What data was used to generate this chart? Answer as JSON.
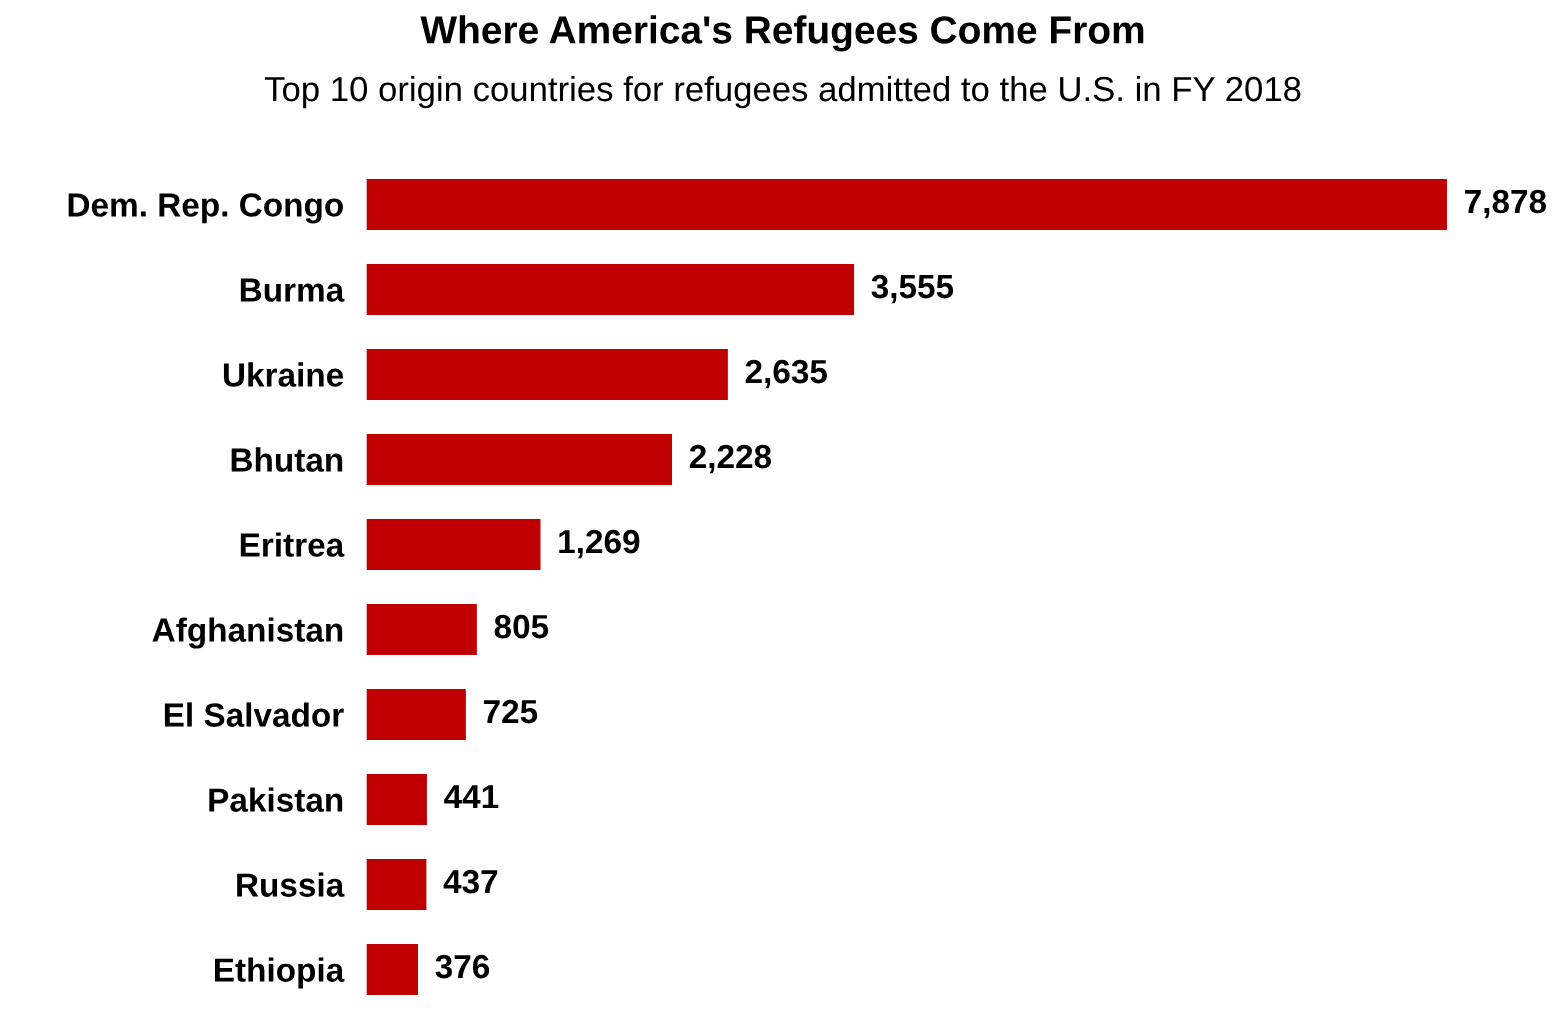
{
  "chart_data": {
    "type": "bar",
    "orientation": "horizontal",
    "title": "Where America's Refugees Come From",
    "subtitle": "Top 10 origin countries for refugees admitted to the U.S. in FY 2018",
    "categories": [
      "Dem. Rep. Congo",
      "Burma",
      "Ukraine",
      "Bhutan",
      "Eritrea",
      "Afghanistan",
      "El Salvador",
      "Pakistan",
      "Russia",
      "Ethiopia"
    ],
    "values": [
      7878,
      3555,
      2635,
      2228,
      1269,
      805,
      725,
      441,
      437,
      376
    ],
    "value_labels": [
      "7,878",
      "3,555",
      "2,635",
      "2,228",
      "1,269",
      "805",
      "725",
      "441",
      "437",
      "376"
    ],
    "color": "#c00000",
    "grid": false,
    "legend": false
  }
}
